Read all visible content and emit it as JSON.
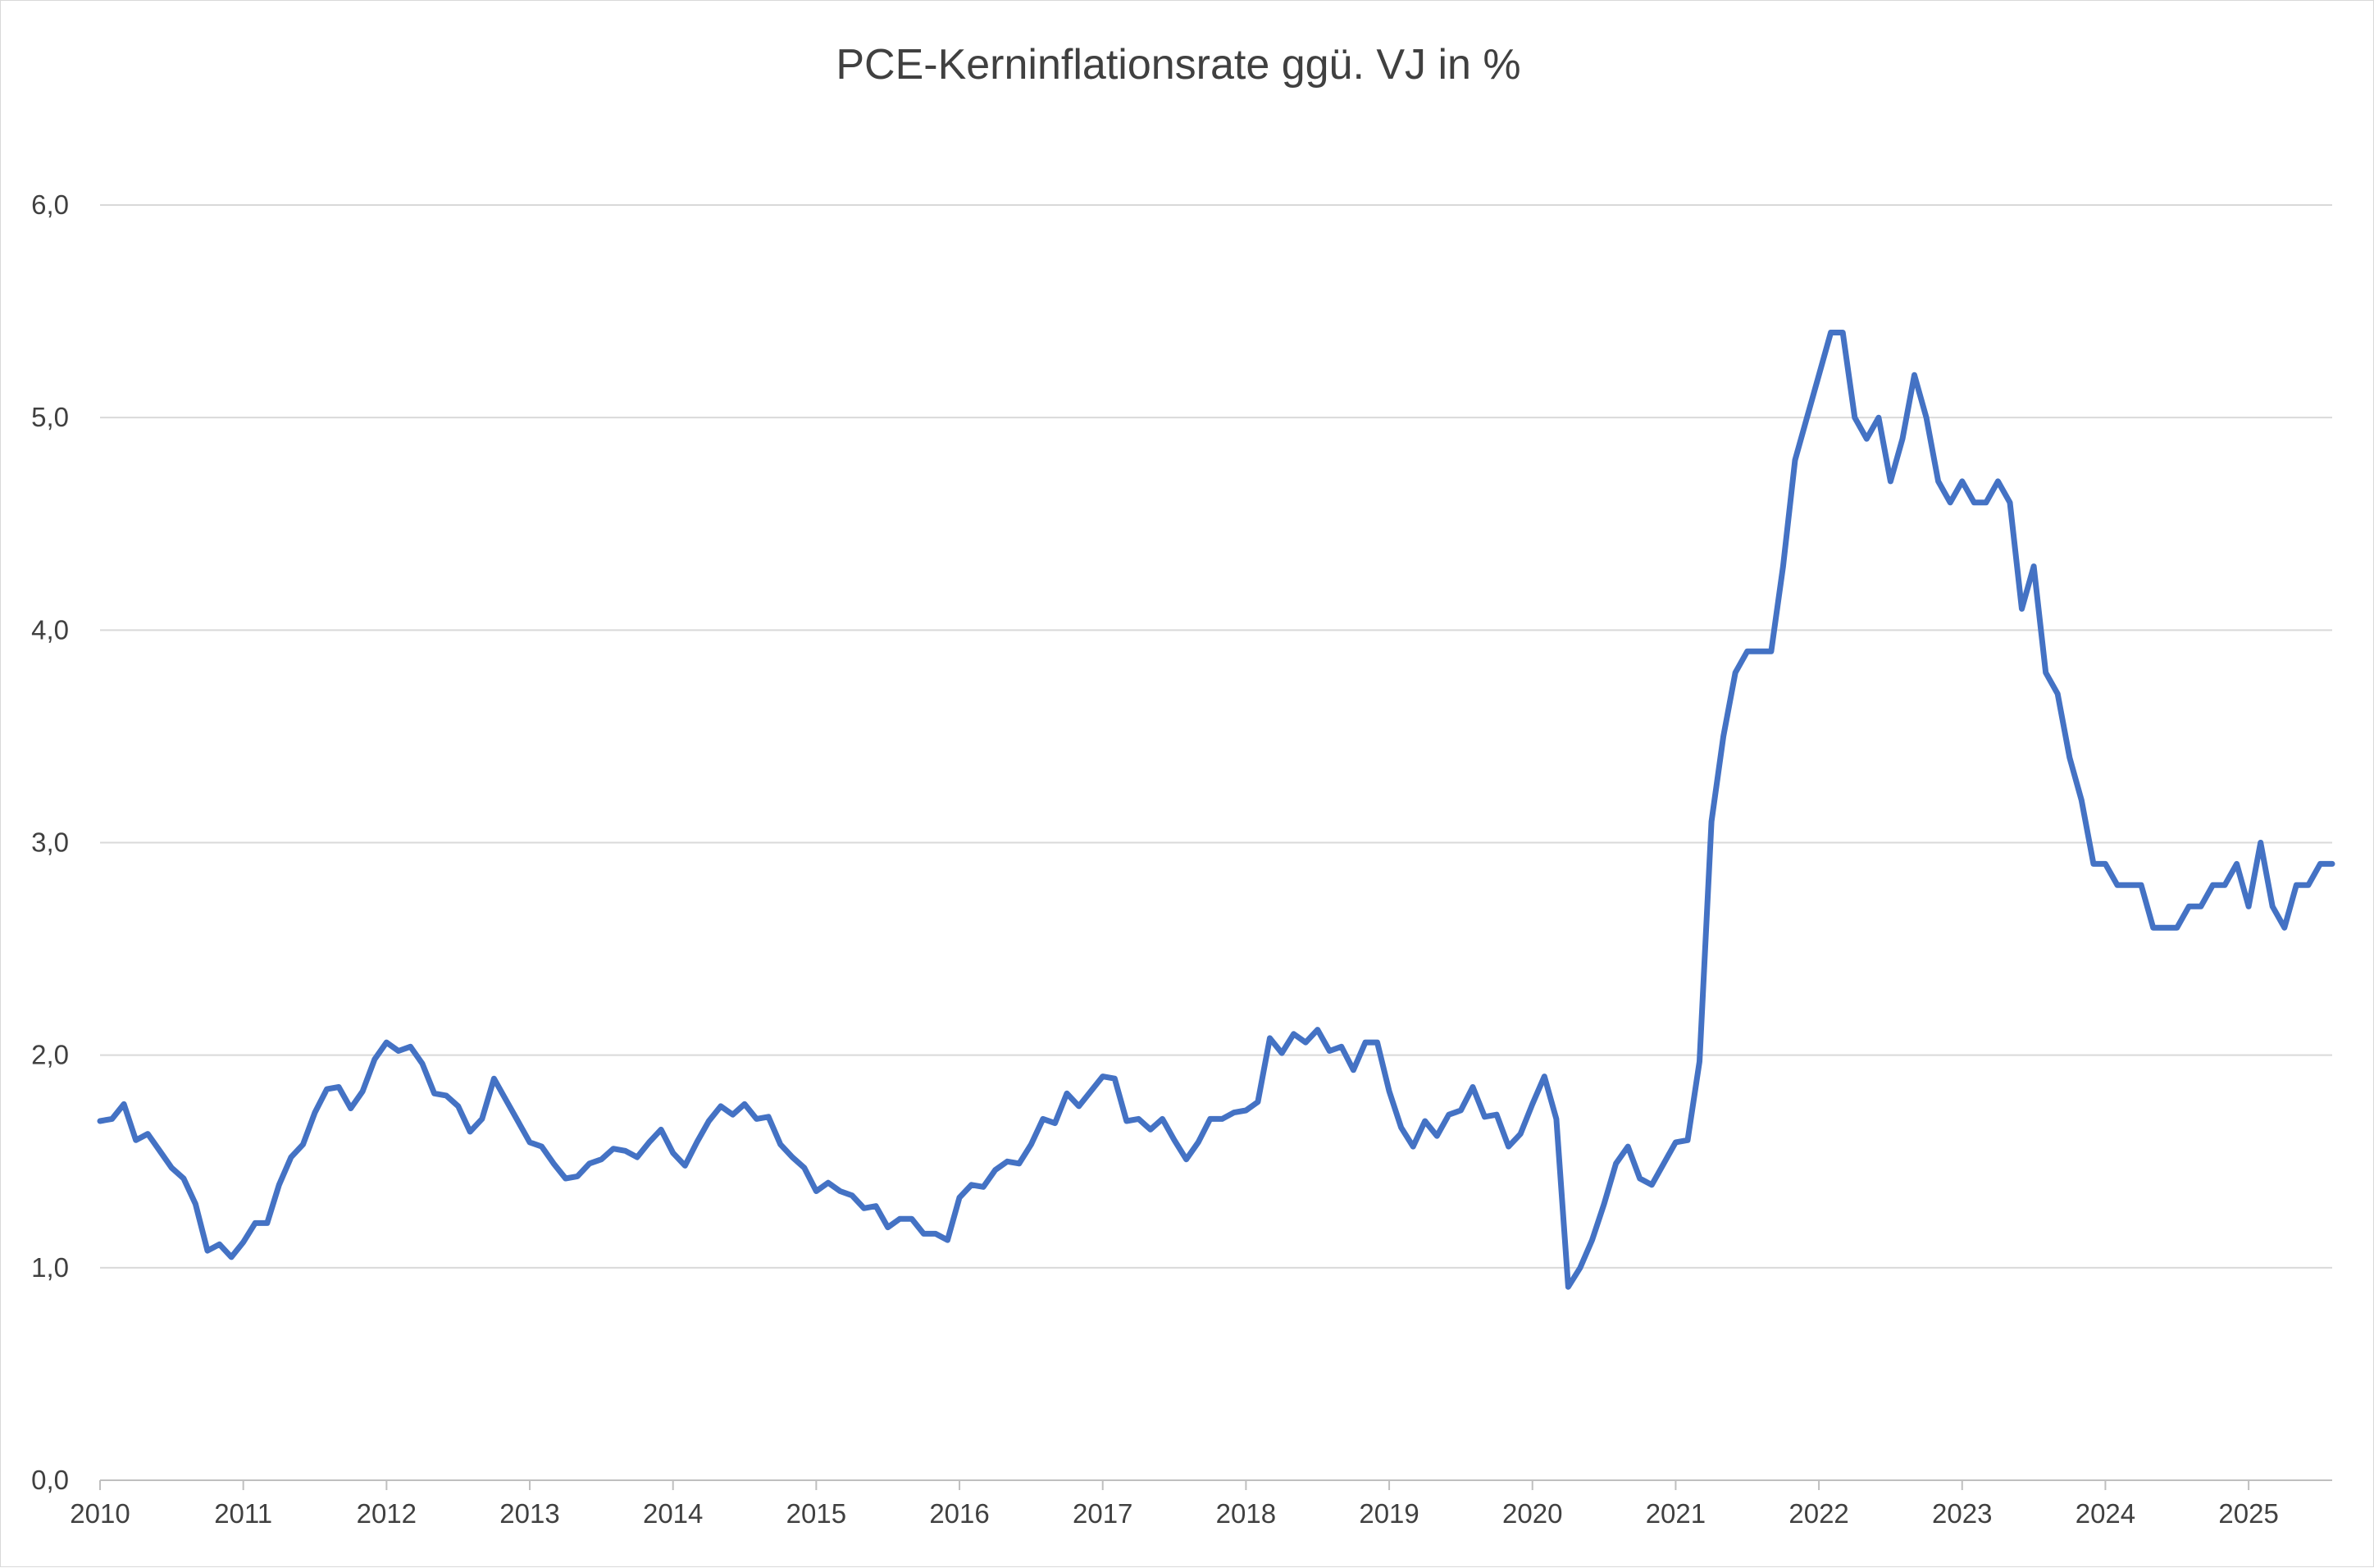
{
  "chart_data": {
    "type": "line",
    "title": "PCE-Kerninflationsrate ggü. VJ in %",
    "xlabel": "",
    "ylabel": "",
    "ylim": [
      0,
      6
    ],
    "y_ticks": [
      0,
      1,
      2,
      3,
      4,
      5,
      6
    ],
    "y_tick_labels": [
      "0,0",
      "1,0",
      "2,0",
      "3,0",
      "4,0",
      "5,0",
      "6,0"
    ],
    "x_range_months": [
      "2010-01",
      "2025-08"
    ],
    "x_tick_labels": [
      "2010",
      "2011",
      "2012",
      "2013",
      "2014",
      "2015",
      "2016",
      "2017",
      "2018",
      "2019",
      "2020",
      "2021",
      "2022",
      "2023",
      "2024",
      "2025"
    ],
    "grid": "horizontal",
    "legend": "none",
    "series": [
      {
        "color": "#4472c4",
        "start": "2010-01",
        "frequency": "monthly",
        "values": [
          1.69,
          1.7,
          1.77,
          1.6,
          1.63,
          1.55,
          1.47,
          1.42,
          1.3,
          1.08,
          1.11,
          1.05,
          1.12,
          1.21,
          1.21,
          1.39,
          1.52,
          1.58,
          1.73,
          1.84,
          1.85,
          1.75,
          1.83,
          1.98,
          2.06,
          2.02,
          2.04,
          1.96,
          1.82,
          1.81,
          1.76,
          1.64,
          1.7,
          1.89,
          1.79,
          1.69,
          1.59,
          1.57,
          1.49,
          1.42,
          1.43,
          1.49,
          1.51,
          1.56,
          1.55,
          1.52,
          1.59,
          1.65,
          1.54,
          1.48,
          1.59,
          1.69,
          1.76,
          1.72,
          1.77,
          1.7,
          1.71,
          1.58,
          1.52,
          1.47,
          1.36,
          1.4,
          1.36,
          1.34,
          1.28,
          1.29,
          1.19,
          1.23,
          1.23,
          1.16,
          1.16,
          1.13,
          1.33,
          1.39,
          1.38,
          1.46,
          1.5,
          1.49,
          1.58,
          1.7,
          1.68,
          1.82,
          1.76,
          1.83,
          1.9,
          1.89,
          1.69,
          1.7,
          1.65,
          1.7,
          1.6,
          1.51,
          1.59,
          1.7,
          1.7,
          1.73,
          1.74,
          1.78,
          2.08,
          2.01,
          2.1,
          2.06,
          2.12,
          2.02,
          2.04,
          1.93,
          2.06,
          2.06,
          1.83,
          1.66,
          1.57,
          1.69,
          1.62,
          1.72,
          1.74,
          1.85,
          1.71,
          1.72,
          1.57,
          1.63,
          1.77,
          1.9,
          1.7,
          0.91,
          1.0,
          1.13,
          1.3,
          1.49,
          1.57,
          1.42,
          1.39,
          1.49,
          1.59,
          1.6,
          1.97,
          3.1,
          3.5,
          3.8,
          3.9,
          3.9,
          3.9,
          4.3,
          4.8,
          5.0,
          5.2,
          5.4,
          5.4,
          5.0,
          4.9,
          5.0,
          4.7,
          4.9,
          5.2,
          5.0,
          4.7,
          4.6,
          4.7,
          4.6,
          4.6,
          4.7,
          4.6,
          4.1,
          4.3,
          3.8,
          3.7,
          3.4,
          3.2,
          2.9,
          2.9,
          2.8,
          2.8,
          2.8,
          2.6,
          2.6,
          2.6,
          2.7,
          2.7,
          2.8,
          2.8,
          2.9,
          2.7,
          3.0,
          2.7,
          2.6,
          2.8,
          2.8,
          2.9,
          2.9
        ]
      }
    ]
  }
}
